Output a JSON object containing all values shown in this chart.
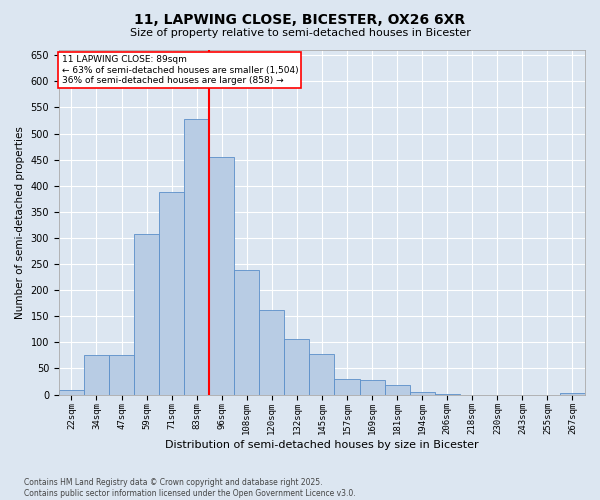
{
  "title_line1": "11, LAPWING CLOSE, BICESTER, OX26 6XR",
  "title_line2": "Size of property relative to semi-detached houses in Bicester",
  "xlabel": "Distribution of semi-detached houses by size in Bicester",
  "ylabel": "Number of semi-detached properties",
  "categories": [
    "22sqm",
    "34sqm",
    "47sqm",
    "59sqm",
    "71sqm",
    "83sqm",
    "96sqm",
    "108sqm",
    "120sqm",
    "132sqm",
    "145sqm",
    "157sqm",
    "169sqm",
    "181sqm",
    "194sqm",
    "206sqm",
    "218sqm",
    "230sqm",
    "243sqm",
    "255sqm",
    "267sqm"
  ],
  "values": [
    8,
    75,
    75,
    308,
    388,
    528,
    455,
    238,
    162,
    107,
    78,
    30,
    28,
    18,
    5,
    2,
    0,
    0,
    0,
    0,
    3
  ],
  "bar_color": "#b8cce4",
  "bar_edgecolor": "#5b8fc9",
  "marker_line_color": "red",
  "marker_label": "11 LAPWING CLOSE: 89sqm",
  "annotation_line1": "← 63% of semi-detached houses are smaller (1,504)",
  "annotation_line2": "36% of semi-detached houses are larger (858) →",
  "ylim": [
    0,
    660
  ],
  "yticks": [
    0,
    50,
    100,
    150,
    200,
    250,
    300,
    350,
    400,
    450,
    500,
    550,
    600,
    650
  ],
  "background_color": "#dce6f1",
  "plot_background_color": "#dce6f1",
  "grid_color": "#ffffff",
  "footer_line1": "Contains HM Land Registry data © Crown copyright and database right 2025.",
  "footer_line2": "Contains public sector information licensed under the Open Government Licence v3.0."
}
